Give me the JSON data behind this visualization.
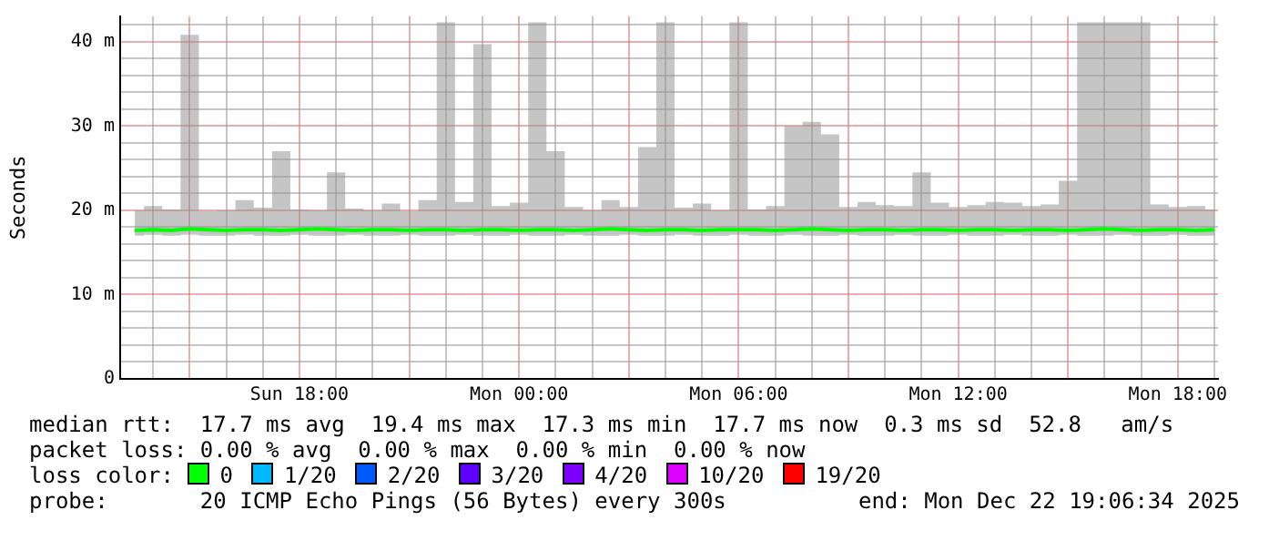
{
  "chart_data": {
    "type": "line",
    "ylabel": "Seconds",
    "x": [
      "2025-12-21T13:30",
      "2025-12-21T14:00",
      "2025-12-21T14:30",
      "2025-12-21T15:00",
      "2025-12-21T15:30",
      "2025-12-21T16:00",
      "2025-12-21T16:30",
      "2025-12-21T17:00",
      "2025-12-21T17:30",
      "2025-12-21T18:00",
      "2025-12-21T18:30",
      "2025-12-21T19:00",
      "2025-12-21T19:30",
      "2025-12-21T20:00",
      "2025-12-21T20:30",
      "2025-12-21T21:00",
      "2025-12-21T21:30",
      "2025-12-21T22:00",
      "2025-12-21T22:30",
      "2025-12-21T23:00",
      "2025-12-21T23:30",
      "2025-12-22T00:00",
      "2025-12-22T00:30",
      "2025-12-22T01:00",
      "2025-12-22T01:30",
      "2025-12-22T02:00",
      "2025-12-22T02:30",
      "2025-12-22T03:00",
      "2025-12-22T03:30",
      "2025-12-22T04:00",
      "2025-12-22T04:30",
      "2025-12-22T05:00",
      "2025-12-22T05:30",
      "2025-12-22T06:00",
      "2025-12-22T06:30",
      "2025-12-22T07:00",
      "2025-12-22T07:30",
      "2025-12-22T08:00",
      "2025-12-22T08:30",
      "2025-12-22T09:00",
      "2025-12-22T09:30",
      "2025-12-22T10:00",
      "2025-12-22T10:30",
      "2025-12-22T11:00",
      "2025-12-22T11:30",
      "2025-12-22T12:00",
      "2025-12-22T12:30",
      "2025-12-22T13:00",
      "2025-12-22T13:30",
      "2025-12-22T14:00",
      "2025-12-22T14:30",
      "2025-12-22T15:00",
      "2025-12-22T15:30",
      "2025-12-22T16:00",
      "2025-12-22T16:30",
      "2025-12-22T17:00",
      "2025-12-22T17:30",
      "2025-12-22T18:00",
      "2025-12-22T18:30",
      "2025-12-22T19:00"
    ],
    "series": [
      {
        "name": "0",
        "color": "#00ff00",
        "values": [
          17.6,
          17.7,
          17.6,
          17.8,
          17.7,
          17.6,
          17.7,
          17.7,
          17.6,
          17.7,
          17.8,
          17.7,
          17.6,
          17.7,
          17.7,
          17.6,
          17.7,
          17.7,
          17.6,
          17.7,
          17.7,
          17.6,
          17.7,
          17.7,
          17.6,
          17.7,
          17.8,
          17.7,
          17.6,
          17.7,
          17.7,
          17.6,
          17.7,
          17.7,
          17.7,
          17.6,
          17.7,
          17.8,
          17.7,
          17.6,
          17.7,
          17.7,
          17.6,
          17.7,
          17.7,
          17.6,
          17.7,
          17.7,
          17.6,
          17.7,
          17.7,
          17.6,
          17.7,
          17.8,
          17.7,
          17.6,
          17.7,
          17.7,
          17.6,
          17.7
        ],
        "lower": [
          17.0,
          17.1,
          17.0,
          17.1,
          17.0,
          17.0,
          17.1,
          17.0,
          17.0,
          17.1,
          17.0,
          17.0,
          17.1,
          17.0,
          17.0,
          17.1,
          17.0,
          17.0,
          17.1,
          17.0,
          17.0,
          17.1,
          17.0,
          17.0,
          17.1,
          17.0,
          17.0,
          17.1,
          17.0,
          17.0,
          17.1,
          17.0,
          17.0,
          17.1,
          17.0,
          17.0,
          17.1,
          17.0,
          17.0,
          17.1,
          17.0,
          17.0,
          17.1,
          17.0,
          17.0,
          17.1,
          17.0,
          17.0,
          17.1,
          17.0,
          17.0,
          17.1,
          17.0,
          17.0,
          17.1,
          17.0,
          17.0,
          17.1,
          17.0,
          17.0
        ],
        "upper": [
          20.0,
          20.5,
          20.1,
          40.8,
          19.9,
          20.0,
          21.2,
          20.3,
          27.0,
          20.1,
          20.0,
          24.5,
          20.2,
          20.0,
          20.8,
          19.9,
          21.2,
          42.3,
          21.0,
          39.7,
          20.5,
          20.9,
          42.3,
          27.0,
          20.4,
          20.0,
          21.2,
          20.4,
          27.5,
          42.3,
          20.3,
          20.8,
          20.0,
          42.3,
          20.1,
          20.5,
          30.0,
          30.5,
          29.0,
          20.4,
          21.0,
          20.6,
          20.5,
          24.5,
          20.9,
          20.4,
          20.6,
          21.0,
          20.9,
          20.5,
          20.7,
          23.5,
          42.3,
          42.3,
          42.3,
          42.3,
          20.7,
          20.4,
          20.5,
          20.1
        ]
      },
      {
        "name": "1/20",
        "color": "#00b8ff",
        "values": [
          null,
          null,
          null,
          null,
          null,
          null,
          null,
          null,
          null,
          null,
          null,
          null,
          null,
          null,
          null,
          null,
          null,
          null,
          null,
          null,
          null,
          null,
          null,
          null,
          null,
          null,
          null,
          null,
          null,
          null,
          null,
          null,
          null,
          null,
          null,
          null,
          null,
          null,
          null,
          null,
          null,
          null,
          null,
          null,
          null,
          null,
          null,
          null,
          null,
          null,
          null,
          null,
          null,
          null,
          null,
          null,
          null,
          null,
          null,
          null
        ]
      },
      {
        "name": "2/20",
        "color": "#0059ff",
        "values": [
          null,
          null,
          null,
          null,
          null,
          null,
          null,
          null,
          null,
          null,
          null,
          null,
          null,
          null,
          null,
          null,
          null,
          null,
          null,
          null,
          null,
          null,
          null,
          null,
          null,
          null,
          null,
          null,
          null,
          null,
          null,
          null,
          null,
          null,
          null,
          null,
          null,
          null,
          null,
          null,
          null,
          null,
          null,
          null,
          null,
          null,
          null,
          null,
          null,
          null,
          null,
          null,
          null,
          null,
          null,
          null,
          null,
          null,
          null,
          null
        ]
      },
      {
        "name": "3/20",
        "color": "#5e00ff",
        "values": [
          null,
          null,
          null,
          null,
          null,
          null,
          null,
          null,
          null,
          null,
          null,
          null,
          null,
          null,
          null,
          null,
          null,
          null,
          null,
          null,
          null,
          null,
          null,
          null,
          null,
          null,
          null,
          null,
          null,
          null,
          null,
          null,
          null,
          null,
          null,
          null,
          null,
          null,
          null,
          null,
          null,
          null,
          null,
          null,
          null,
          null,
          null,
          null,
          null,
          null,
          null,
          null,
          null,
          null,
          null,
          null,
          null,
          null,
          null,
          null
        ]
      },
      {
        "name": "4/20",
        "color": "#7e00ff",
        "values": [
          null,
          null,
          null,
          null,
          null,
          null,
          null,
          null,
          null,
          null,
          null,
          null,
          null,
          null,
          null,
          null,
          null,
          null,
          null,
          null,
          null,
          null,
          null,
          null,
          null,
          null,
          null,
          null,
          null,
          null,
          null,
          null,
          null,
          null,
          null,
          null,
          null,
          null,
          null,
          null,
          null,
          null,
          null,
          null,
          null,
          null,
          null,
          null,
          null,
          null,
          null,
          null,
          null,
          null,
          null,
          null,
          null,
          null,
          null,
          null
        ]
      },
      {
        "name": "10/20",
        "color": "#dd00ff",
        "values": [
          null,
          null,
          null,
          null,
          null,
          null,
          null,
          null,
          null,
          null,
          null,
          null,
          null,
          null,
          null,
          null,
          null,
          null,
          null,
          null,
          null,
          null,
          null,
          null,
          null,
          null,
          null,
          null,
          null,
          null,
          null,
          null,
          null,
          null,
          null,
          null,
          null,
          null,
          null,
          null,
          null,
          null,
          null,
          null,
          null,
          null,
          null,
          null,
          null,
          null,
          null,
          null,
          null,
          null,
          null,
          null,
          null,
          null,
          null,
          null
        ]
      },
      {
        "name": "19/20",
        "color": "#ff0000",
        "values": [
          null,
          null,
          null,
          null,
          null,
          null,
          null,
          null,
          null,
          null,
          null,
          null,
          null,
          null,
          null,
          null,
          null,
          null,
          null,
          null,
          null,
          null,
          null,
          null,
          null,
          null,
          null,
          null,
          null,
          null,
          null,
          null,
          null,
          null,
          null,
          null,
          null,
          null,
          null,
          null,
          null,
          null,
          null,
          null,
          null,
          null,
          null,
          null,
          null,
          null,
          null,
          null,
          null,
          null,
          null,
          null,
          null,
          null,
          null,
          null
        ]
      }
    ],
    "legend": "bottom",
    "legend_title": "loss color:",
    "grid": true,
    "line_style": "solid",
    "marker": "none",
    "xlim": [
      "2025-12-21T13:06",
      "2025-12-22T19:06"
    ],
    "xticks": [
      {
        "value": "2025-12-21T14:00",
        "label": null
      },
      {
        "value": "2025-12-21T15:00",
        "label": null
      },
      {
        "value": "2025-12-21T16:00",
        "label": null
      },
      {
        "value": "2025-12-21T17:00",
        "label": null
      },
      {
        "value": "2025-12-21T18:00",
        "label": "Sun 18:00"
      },
      {
        "value": "2025-12-21T19:00",
        "label": null
      },
      {
        "value": "2025-12-21T20:00",
        "label": null
      },
      {
        "value": "2025-12-21T21:00",
        "label": null
      },
      {
        "value": "2025-12-21T22:00",
        "label": null
      },
      {
        "value": "2025-12-21T23:00",
        "label": null
      },
      {
        "value": "2025-12-22T00:00",
        "label": "Mon 00:00"
      },
      {
        "value": "2025-12-22T01:00",
        "label": null
      },
      {
        "value": "2025-12-22T02:00",
        "label": null
      },
      {
        "value": "2025-12-22T03:00",
        "label": null
      },
      {
        "value": "2025-12-22T04:00",
        "label": null
      },
      {
        "value": "2025-12-22T05:00",
        "label": null
      },
      {
        "value": "2025-12-22T06:00",
        "label": "Mon 06:00"
      },
      {
        "value": "2025-12-22T07:00",
        "label": null
      },
      {
        "value": "2025-12-22T08:00",
        "label": null
      },
      {
        "value": "2025-12-22T09:00",
        "label": null
      },
      {
        "value": "2025-12-22T10:00",
        "label": null
      },
      {
        "value": "2025-12-22T11:00",
        "label": null
      },
      {
        "value": "2025-12-22T12:00",
        "label": "Mon 12:00"
      },
      {
        "value": "2025-12-22T13:00",
        "label": null
      },
      {
        "value": "2025-12-22T14:00",
        "label": null
      },
      {
        "value": "2025-12-22T15:00",
        "label": null
      },
      {
        "value": "2025-12-22T16:00",
        "label": null
      },
      {
        "value": "2025-12-22T17:00",
        "label": null
      },
      {
        "value": "2025-12-22T18:00",
        "label": "Mon 18:00"
      },
      {
        "value": "2025-12-22T19:00",
        "label": null
      }
    ],
    "ylim": [
      0,
      43
    ],
    "yticks": [
      {
        "value": 0,
        "label": "0"
      },
      {
        "value": 2,
        "label": null
      },
      {
        "value": 4,
        "label": null
      },
      {
        "value": 6,
        "label": null
      },
      {
        "value": 8,
        "label": null
      },
      {
        "value": 10,
        "label": "10 m"
      },
      {
        "value": 12,
        "label": null
      },
      {
        "value": 14,
        "label": null
      },
      {
        "value": 16,
        "label": null
      },
      {
        "value": 18,
        "label": null
      },
      {
        "value": 20,
        "label": "20 m"
      },
      {
        "value": 22,
        "label": null
      },
      {
        "value": 24,
        "label": null
      },
      {
        "value": 26,
        "label": null
      },
      {
        "value": 28,
        "label": null
      },
      {
        "value": 30,
        "label": "30 m"
      },
      {
        "value": 32,
        "label": null
      },
      {
        "value": 34,
        "label": null
      },
      {
        "value": 36,
        "label": null
      },
      {
        "value": 38,
        "label": null
      },
      {
        "value": 40,
        "label": "40 m"
      },
      {
        "value": 42,
        "label": null
      }
    ],
    "annotations": [
      "median rtt:  17.7 ms avg  19.4 ms max  17.3 ms min  17.7 ms now  0.3 ms sd  52.8   am/s",
      "packet loss: 0.00 % avg  0.00 % max  0.00 % min  0.00 % now",
      "probe:       20 ICMP Echo Pings (56 Bytes) every 300s",
      "end: Mon Dec 22 19:06:34 2025"
    ]
  }
}
